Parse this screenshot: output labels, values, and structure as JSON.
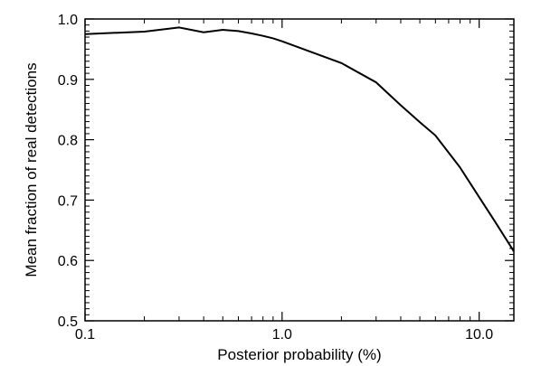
{
  "chart_data": {
    "type": "line",
    "title": "",
    "xlabel": "Posterior probability (%)",
    "ylabel": "Mean fraction of real detections",
    "xscale": "log",
    "xlim": [
      0.1,
      15
    ],
    "ylim": [
      0.5,
      1.0
    ],
    "grid": false,
    "legend": "none",
    "line_color": "#000000",
    "x_ticks": [
      {
        "value": 0.1,
        "label": "0.1"
      },
      {
        "value": 1.0,
        "label": "1.0"
      },
      {
        "value": 10.0,
        "label": "10.0"
      }
    ],
    "y_ticks": [
      {
        "value": 0.5,
        "label": "0.5"
      },
      {
        "value": 0.6,
        "label": "0.6"
      },
      {
        "value": 0.7,
        "label": "0.7"
      },
      {
        "value": 0.8,
        "label": "0.8"
      },
      {
        "value": 0.9,
        "label": "0.9"
      },
      {
        "value": 1.0,
        "label": "1.0"
      }
    ],
    "series": [
      {
        "x": [
          0.1,
          0.2,
          0.3,
          0.4,
          0.5,
          0.6,
          0.7,
          0.8,
          0.9,
          1.0,
          2.0,
          3.0,
          4.0,
          5.0,
          6.0,
          8.0,
          10.0,
          12.0,
          15.0
        ],
        "y": [
          0.975,
          0.979,
          0.986,
          0.978,
          0.982,
          0.98,
          0.976,
          0.972,
          0.968,
          0.963,
          0.927,
          0.895,
          0.857,
          0.829,
          0.807,
          0.754,
          0.705,
          0.665,
          0.615
        ]
      }
    ]
  }
}
